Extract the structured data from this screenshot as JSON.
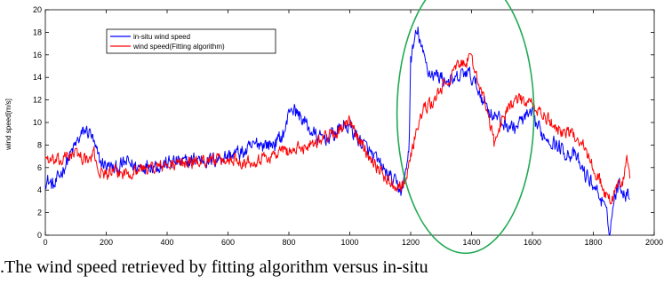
{
  "caption": ".The wind speed retrieved by fitting algorithm versus in-situ",
  "chart_data": {
    "type": "line",
    "title": "",
    "xlabel": "",
    "ylabel": "wind speed[m/s]",
    "xlim": [
      0,
      2000
    ],
    "ylim": [
      0,
      20
    ],
    "xticks": [
      0,
      200,
      400,
      600,
      800,
      1000,
      1200,
      1400,
      1600,
      1800,
      2000
    ],
    "yticks": [
      0,
      2,
      4,
      6,
      8,
      10,
      12,
      14,
      16,
      18,
      20
    ],
    "grid": false,
    "legend": "top-left",
    "annotation": {
      "type": "ellipse",
      "color": "#22aa55",
      "center": [
        1380,
        10.8
      ],
      "radii": [
        225,
        12.4
      ]
    },
    "series": [
      {
        "name": "in-situ wind speed",
        "color": "#0000ff",
        "noise": 0.6,
        "points": [
          [
            0,
            5
          ],
          [
            30,
            4.3
          ],
          [
            60,
            6
          ],
          [
            90,
            7.5
          ],
          [
            110,
            8.5
          ],
          [
            130,
            9.3
          ],
          [
            150,
            9
          ],
          [
            165,
            7.5
          ],
          [
            180,
            6.5
          ],
          [
            200,
            6.2
          ],
          [
            230,
            5.8
          ],
          [
            270,
            6.5
          ],
          [
            300,
            6
          ],
          [
            340,
            6.3
          ],
          [
            380,
            6.2
          ],
          [
            420,
            6.5
          ],
          [
            460,
            6.4
          ],
          [
            500,
            6.8
          ],
          [
            540,
            6.6
          ],
          [
            580,
            6.9
          ],
          [
            620,
            7.2
          ],
          [
            660,
            7.4
          ],
          [
            700,
            8.2
          ],
          [
            740,
            8
          ],
          [
            770,
            8.5
          ],
          [
            790,
            9.5
          ],
          [
            805,
            11.5
          ],
          [
            820,
            11
          ],
          [
            840,
            10.5
          ],
          [
            860,
            9.7
          ],
          [
            880,
            9
          ],
          [
            900,
            8.5
          ],
          [
            940,
            8.8
          ],
          [
            980,
            9.7
          ],
          [
            1000,
            9.6
          ],
          [
            1030,
            8.5
          ],
          [
            1060,
            7.5
          ],
          [
            1090,
            6.5
          ],
          [
            1120,
            5.5
          ],
          [
            1150,
            4.5
          ],
          [
            1170,
            4
          ],
          [
            1185,
            5.5
          ],
          [
            1195,
            8
          ],
          [
            1200,
            15.5
          ],
          [
            1215,
            17.5
          ],
          [
            1225,
            18
          ],
          [
            1240,
            16
          ],
          [
            1260,
            14.5
          ],
          [
            1300,
            14
          ],
          [
            1340,
            13.5
          ],
          [
            1380,
            14.5
          ],
          [
            1400,
            14
          ],
          [
            1430,
            12.5
          ],
          [
            1460,
            11
          ],
          [
            1500,
            10
          ],
          [
            1540,
            9.5
          ],
          [
            1580,
            10.5
          ],
          [
            1600,
            10.5
          ],
          [
            1630,
            9
          ],
          [
            1660,
            8.5
          ],
          [
            1700,
            7.5
          ],
          [
            1740,
            7
          ],
          [
            1770,
            5.5
          ],
          [
            1800,
            4.5
          ],
          [
            1830,
            3
          ],
          [
            1845,
            1.5
          ],
          [
            1855,
            0.5
          ],
          [
            1870,
            3.5
          ],
          [
            1885,
            4.5
          ],
          [
            1900,
            4
          ],
          [
            1915,
            3.5
          ],
          [
            1920,
            4
          ]
        ]
      },
      {
        "name": "wind speed(Fitting algorithm)",
        "color": "#ff0000",
        "noise": 0.5,
        "points": [
          [
            0,
            7
          ],
          [
            20,
            6.5
          ],
          [
            50,
            6.5
          ],
          [
            80,
            7.2
          ],
          [
            110,
            7.2
          ],
          [
            140,
            6.5
          ],
          [
            160,
            7.2
          ],
          [
            180,
            5.5
          ],
          [
            200,
            5.5
          ],
          [
            230,
            5.5
          ],
          [
            260,
            5.5
          ],
          [
            300,
            5.8
          ],
          [
            340,
            6
          ],
          [
            380,
            6.1
          ],
          [
            420,
            6.2
          ],
          [
            460,
            6.5
          ],
          [
            500,
            6.5
          ],
          [
            540,
            6.8
          ],
          [
            580,
            6.5
          ],
          [
            620,
            6.8
          ],
          [
            660,
            6.5
          ],
          [
            700,
            6.8
          ],
          [
            740,
            7
          ],
          [
            780,
            7.5
          ],
          [
            820,
            7.5
          ],
          [
            860,
            8
          ],
          [
            900,
            8.5
          ],
          [
            940,
            9
          ],
          [
            980,
            9.5
          ],
          [
            1000,
            10
          ],
          [
            1040,
            8
          ],
          [
            1080,
            6.5
          ],
          [
            1120,
            5
          ],
          [
            1150,
            4.5
          ],
          [
            1170,
            4.5
          ],
          [
            1185,
            5
          ],
          [
            1200,
            7
          ],
          [
            1220,
            9.5
          ],
          [
            1240,
            11
          ],
          [
            1260,
            11.5
          ],
          [
            1280,
            12
          ],
          [
            1300,
            13
          ],
          [
            1320,
            13.5
          ],
          [
            1340,
            14.5
          ],
          [
            1360,
            15
          ],
          [
            1380,
            15.5
          ],
          [
            1400,
            15.5
          ],
          [
            1420,
            14
          ],
          [
            1440,
            12
          ],
          [
            1460,
            10
          ],
          [
            1475,
            8
          ],
          [
            1490,
            9.5
          ],
          [
            1520,
            11.5
          ],
          [
            1560,
            12
          ],
          [
            1600,
            11.5
          ],
          [
            1640,
            10.5
          ],
          [
            1680,
            9.5
          ],
          [
            1720,
            9
          ],
          [
            1760,
            8.5
          ],
          [
            1790,
            6.5
          ],
          [
            1820,
            5
          ],
          [
            1840,
            3.5
          ],
          [
            1860,
            3
          ],
          [
            1880,
            4.5
          ],
          [
            1900,
            5
          ],
          [
            1910,
            7
          ],
          [
            1920,
            5
          ]
        ]
      }
    ]
  }
}
